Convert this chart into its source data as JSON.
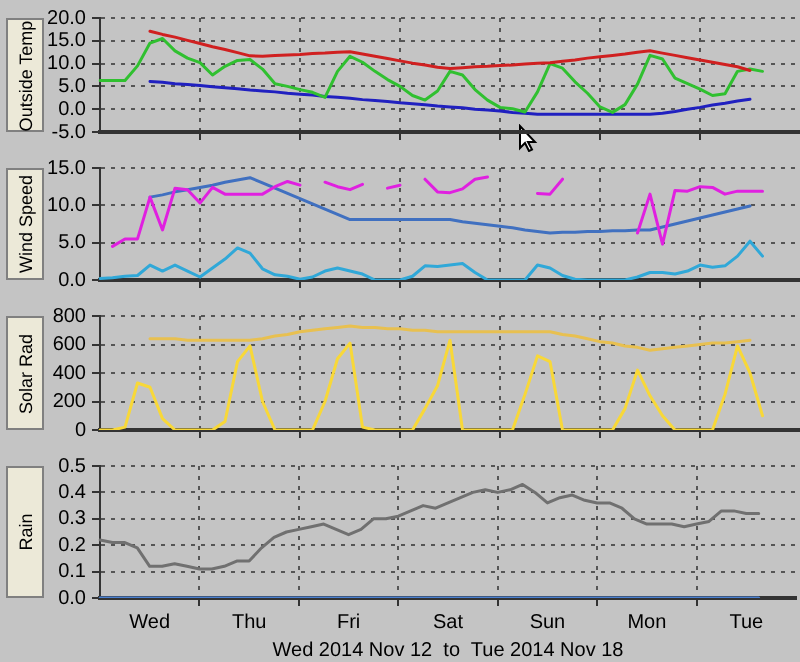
{
  "chart_data": [
    {
      "type": "line",
      "ylabel": "Outside Temp",
      "categories": [
        null,
        null,
        null,
        null,
        null,
        null,
        null,
        null,
        null,
        null,
        null,
        null,
        null,
        null,
        null,
        null,
        null,
        null,
        null,
        null,
        null,
        null,
        null,
        null,
        null,
        null,
        null,
        null,
        null,
        null,
        null,
        null,
        null,
        null,
        null,
        null,
        null,
        null,
        null,
        null,
        null,
        null,
        null,
        null,
        null,
        null,
        null,
        null,
        null,
        null,
        null,
        null,
        null,
        null,
        null,
        null,
        null
      ],
      "ylim": [
        -5,
        20
      ],
      "yticks": [
        {
          "value": -5,
          "label": "-5.0"
        },
        {
          "value": 0,
          "label": "0.0"
        },
        {
          "value": 5,
          "label": "5.0"
        },
        {
          "value": 10,
          "label": "10.0"
        },
        {
          "value": 15,
          "label": "15.0"
        },
        {
          "value": 20,
          "label": "20.0"
        }
      ],
      "grid": true,
      "tick_labels": "y",
      "marker": "none",
      "series": [
        {
          "color": "#d02020",
          "values": [
            null,
            null,
            null,
            null,
            17.1,
            16.4,
            15.8,
            15.1,
            14.4,
            13.7,
            13.1,
            12.4,
            11.7,
            11.6,
            11.8,
            11.9,
            12,
            12.2,
            12.3,
            12.5,
            12.6,
            12.1,
            11.6,
            11.1,
            10.6,
            10.1,
            9.7,
            9.2,
            8.9,
            9.1,
            9.3,
            9.4,
            9.6,
            9.7,
            9.9,
            10.1,
            10.2,
            10.5,
            10.8,
            11.2,
            11.5,
            11.8,
            12.1,
            12.5,
            12.8,
            12.3,
            11.8,
            11.3,
            10.8,
            10.3,
            9.8,
            9.3,
            8.5,
            null,
            null,
            null,
            null
          ]
        },
        {
          "color": "#30c030",
          "values": [
            6.3,
            6.3,
            6.3,
            9.5,
            14.5,
            15.5,
            12.8,
            11.2,
            10.2,
            7.5,
            9.4,
            10.7,
            10.9,
            8.8,
            5.6,
            5,
            4.3,
            3.7,
            2.6,
            8.3,
            11.6,
            10.3,
            8.3,
            6.5,
            5,
            3,
            2,
            4,
            8.3,
            7.5,
            4.3,
            2,
            0.4,
            0.1,
            -0.6,
            3.8,
            10,
            9,
            6,
            3.5,
            0.5,
            -0.7,
            1,
            5.5,
            11.8,
            11,
            6.8,
            5.6,
            4.4,
            3,
            3.4,
            8.3,
            8.8,
            8.3,
            null,
            null,
            null
          ]
        },
        {
          "color": "#2020c0",
          "values": [
            null,
            null,
            null,
            null,
            6.1,
            5.9,
            5.6,
            5.4,
            5.2,
            4.9,
            4.7,
            4.5,
            4.2,
            4,
            3.8,
            3.5,
            3.3,
            3.1,
            2.8,
            2.6,
            2.4,
            2.1,
            1.9,
            1.7,
            1.4,
            1.2,
            1,
            0.7,
            0.5,
            0.3,
            0,
            -0.2,
            -0.4,
            -0.7,
            -0.9,
            -1.1,
            -1.1,
            -1.1,
            -1.1,
            -1.1,
            -1.1,
            -1.1,
            -1.1,
            -1.1,
            -1.1,
            -0.9,
            -0.5,
            0,
            0.4,
            0.9,
            1.3,
            1.8,
            2.2,
            null,
            null,
            null,
            null
          ]
        }
      ]
    },
    {
      "type": "line",
      "ylabel": "Wind Speed",
      "categories": [
        null,
        null,
        null,
        null,
        null,
        null,
        null,
        null,
        null,
        null,
        null,
        null,
        null,
        null,
        null,
        null,
        null,
        null,
        null,
        null,
        null,
        null,
        null,
        null,
        null,
        null,
        null,
        null,
        null,
        null,
        null,
        null,
        null,
        null,
        null,
        null,
        null,
        null,
        null,
        null,
        null,
        null,
        null,
        null,
        null,
        null,
        null,
        null,
        null,
        null,
        null,
        null,
        null,
        null,
        null,
        null,
        null
      ],
      "ylim": [
        0,
        15
      ],
      "yticks": [
        {
          "value": 0,
          "label": "0.0"
        },
        {
          "value": 5,
          "label": "5.0"
        },
        {
          "value": 10,
          "label": "10.0"
        },
        {
          "value": 15,
          "label": "15.0"
        }
      ],
      "grid": true,
      "tick_labels": "y",
      "marker": "none",
      "series": [
        {
          "color": "#e020e0",
          "values": [
            null,
            4.5,
            5.5,
            5.5,
            11.1,
            6.7,
            12.3,
            12.1,
            10.3,
            12.4,
            11.5,
            11.5,
            11.5,
            11.5,
            12.5,
            13.2,
            12.7,
            null,
            13.1,
            12.5,
            12.1,
            12.8,
            null,
            12.3,
            12.7,
            null,
            13.5,
            11.8,
            11.7,
            12.2,
            13.5,
            13.8,
            null,
            null,
            null,
            11.6,
            11.5,
            13.5,
            null,
            null,
            null,
            null,
            null,
            6.3,
            11.5,
            4.8,
            12,
            11.9,
            12.5,
            12.4,
            11.5,
            11.9,
            11.9,
            11.9,
            null,
            null,
            null
          ]
        },
        {
          "color": "#4070c0",
          "values": [
            null,
            null,
            null,
            null,
            11.1,
            11.4,
            11.8,
            12.1,
            12.4,
            12.7,
            13.1,
            13.4,
            13.7,
            13,
            12.3,
            11.6,
            10.9,
            10.2,
            9.5,
            8.8,
            8.1,
            8.1,
            8.1,
            8.1,
            8.1,
            8.1,
            8.1,
            8.1,
            8.1,
            7.8,
            7.6,
            7.4,
            7.2,
            7,
            6.7,
            6.5,
            6.3,
            6.4,
            6.4,
            6.5,
            6.5,
            6.6,
            6.6,
            6.7,
            6.7,
            7.1,
            7.5,
            7.9,
            8.3,
            8.7,
            9.1,
            9.5,
            9.9,
            null,
            null,
            null,
            null
          ]
        },
        {
          "color": "#30a8d8",
          "values": [
            0.2,
            0.3,
            0.5,
            0.6,
            2,
            1.2,
            2,
            1.2,
            0.4,
            1.6,
            2.8,
            4.3,
            3.6,
            1.5,
            0.7,
            0.5,
            0.1,
            0.4,
            1.2,
            1.6,
            1.2,
            0.8,
            0,
            0,
            0,
            0.5,
            1.9,
            1.8,
            2,
            2.2,
            1,
            0,
            0,
            0,
            0,
            2,
            1.6,
            0.6,
            0.1,
            0,
            0,
            0,
            0,
            0.4,
            1,
            1,
            0.8,
            1.2,
            2,
            1.7,
            1.9,
            3.2,
            5.2,
            3.2,
            null,
            null,
            null
          ]
        }
      ]
    },
    {
      "type": "line",
      "ylabel": "Solar Rad",
      "categories": [
        null,
        null,
        null,
        null,
        null,
        null,
        null,
        null,
        null,
        null,
        null,
        null,
        null,
        null,
        null,
        null,
        null,
        null,
        null,
        null,
        null,
        null,
        null,
        null,
        null,
        null,
        null,
        null,
        null,
        null,
        null,
        null,
        null,
        null,
        null,
        null,
        null,
        null,
        null,
        null,
        null,
        null,
        null,
        null,
        null,
        null,
        null,
        null,
        null,
        null,
        null,
        null,
        null,
        null,
        null,
        null,
        null
      ],
      "ylim": [
        0,
        800
      ],
      "yticks": [
        0,
        200,
        400,
        600,
        800
      ],
      "grid": true,
      "tick_labels": "y",
      "marker": "none",
      "series": [
        {
          "color": "#e8c050",
          "values": [
            null,
            null,
            null,
            null,
            640,
            640,
            640,
            630,
            630,
            630,
            630,
            630,
            630,
            640,
            660,
            670,
            690,
            700,
            710,
            720,
            730,
            720,
            720,
            710,
            710,
            700,
            700,
            690,
            690,
            690,
            690,
            690,
            690,
            690,
            690,
            690,
            690,
            670,
            660,
            640,
            620,
            610,
            590,
            580,
            560,
            570,
            580,
            590,
            600,
            610,
            610,
            620,
            630,
            null,
            null,
            null,
            null
          ]
        },
        {
          "color": "#f8d838",
          "values": [
            0,
            0,
            20,
            330,
            300,
            80,
            0,
            0,
            0,
            0,
            60,
            480,
            590,
            200,
            0,
            0,
            0,
            0,
            200,
            500,
            610,
            20,
            0,
            0,
            0,
            0,
            150,
            310,
            630,
            0,
            0,
            0,
            0,
            0,
            250,
            520,
            480,
            0,
            0,
            0,
            0,
            0,
            150,
            420,
            240,
            100,
            0,
            0,
            0,
            0,
            250,
            590,
            400,
            100,
            null,
            null,
            null
          ]
        }
      ]
    },
    {
      "type": "line",
      "ylabel": "Rain",
      "xlabel": "Wed 2014 Nov 12  to  Tue 2014 Nov 18",
      "categories": [
        null,
        null,
        null,
        null,
        "Wed",
        null,
        null,
        null,
        null,
        null,
        null,
        null,
        "Thu",
        null,
        null,
        null,
        null,
        null,
        null,
        null,
        "Fri",
        null,
        null,
        null,
        null,
        null,
        null,
        null,
        "Sat",
        null,
        null,
        null,
        null,
        null,
        null,
        null,
        "Sun",
        null,
        null,
        null,
        null,
        null,
        null,
        null,
        "Mon",
        null,
        null,
        null,
        null,
        null,
        null,
        null,
        "Tue",
        null,
        null,
        null,
        null
      ],
      "ylim": [
        0,
        0.5
      ],
      "yticks": [
        {
          "value": 0,
          "label": "0.0"
        },
        0.1,
        0.2,
        0.3,
        0.4,
        0.5
      ],
      "grid": true,
      "marker": "none",
      "series": [
        {
          "color": "#707070",
          "values": [
            0.22,
            0.21,
            0.21,
            0.19,
            0.12,
            0.12,
            0.13,
            0.12,
            0.11,
            0.11,
            0.12,
            0.14,
            0.14,
            0.19,
            0.23,
            0.25,
            0.26,
            0.27,
            0.28,
            0.26,
            0.24,
            0.26,
            0.3,
            0.3,
            0.31,
            0.33,
            0.35,
            0.34,
            0.36,
            0.38,
            0.4,
            0.41,
            0.4,
            0.41,
            0.43,
            0.4,
            0.36,
            0.38,
            0.39,
            0.37,
            0.36,
            0.36,
            0.34,
            0.3,
            0.28,
            0.28,
            0.28,
            0.27,
            0.28,
            0.29,
            0.33,
            0.33,
            0.32,
            0.32,
            null,
            null,
            null
          ]
        },
        {
          "color": "#4a80d0",
          "values": [
            0,
            0,
            0,
            0,
            0,
            0,
            0,
            0,
            0,
            0,
            0,
            0,
            0,
            0,
            0,
            0,
            0,
            0,
            0,
            0,
            0,
            0,
            0,
            0,
            0,
            0,
            0,
            0,
            0,
            0,
            0,
            0,
            0,
            0,
            0,
            0,
            0,
            0,
            0,
            0,
            0,
            0,
            0,
            0,
            0,
            0,
            0,
            0,
            0,
            0,
            0,
            0,
            0,
            0,
            null,
            null,
            null
          ]
        }
      ]
    }
  ]
}
